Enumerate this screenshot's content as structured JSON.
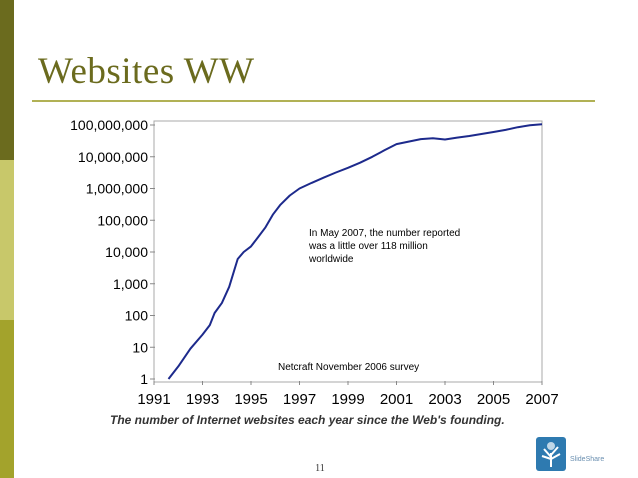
{
  "slide": {
    "title": "Websites WW",
    "page_number": "11",
    "logo_text": "SlideShare"
  },
  "colors": {
    "bar_dark": "#6b6b1e",
    "bar_light": "#c8c86a",
    "title": "#6b6b1e",
    "line": "#1d2a8c",
    "logo": "#2e7ab0"
  },
  "chart_data": {
    "type": "line",
    "y_scale": "log",
    "ylim": [
      1,
      100000000
    ],
    "xlim": [
      1991,
      2007
    ],
    "xticks": [
      "1991",
      "1993",
      "1995",
      "1997",
      "1999",
      "2001",
      "2003",
      "2005",
      "2007"
    ],
    "yticks": [
      {
        "value": 100000000,
        "label": "100,000,000"
      },
      {
        "value": 10000000,
        "label": "10,000,000"
      },
      {
        "value": 1000000,
        "label": "1,000,000"
      },
      {
        "value": 100000,
        "label": "100,000"
      },
      {
        "value": 10000,
        "label": "10,000"
      },
      {
        "value": 1000,
        "label": "1,000"
      },
      {
        "value": 100,
        "label": "100"
      },
      {
        "value": 10,
        "label": "10"
      },
      {
        "value": 1,
        "label": "1"
      }
    ],
    "series": [
      {
        "points": [
          [
            1991.6,
            1
          ],
          [
            1992.0,
            2.5
          ],
          [
            1992.5,
            9
          ],
          [
            1993.0,
            25
          ],
          [
            1993.3,
            50
          ],
          [
            1993.5,
            120
          ],
          [
            1993.8,
            250
          ],
          [
            1994.1,
            800
          ],
          [
            1994.3,
            2500
          ],
          [
            1994.45,
            6000
          ],
          [
            1994.7,
            10000
          ],
          [
            1995.0,
            15000
          ],
          [
            1995.3,
            30000
          ],
          [
            1995.6,
            60000
          ],
          [
            1995.9,
            150000
          ],
          [
            1996.2,
            300000
          ],
          [
            1996.6,
            600000
          ],
          [
            1997.0,
            1000000
          ],
          [
            1997.5,
            1500000
          ],
          [
            1998.0,
            2200000
          ],
          [
            1998.5,
            3200000
          ],
          [
            1999.0,
            4500000
          ],
          [
            1999.5,
            6500000
          ],
          [
            2000.0,
            10000000
          ],
          [
            2000.5,
            16000000
          ],
          [
            2001.0,
            25000000
          ],
          [
            2001.5,
            30000000
          ],
          [
            2002.0,
            36000000
          ],
          [
            2002.5,
            38000000
          ],
          [
            2003.0,
            35000000
          ],
          [
            2003.5,
            40000000
          ],
          [
            2004.0,
            45000000
          ],
          [
            2004.5,
            52000000
          ],
          [
            2005.0,
            60000000
          ],
          [
            2005.5,
            70000000
          ],
          [
            2006.0,
            85000000
          ],
          [
            2006.5,
            98000000
          ],
          [
            2007.0,
            105000000
          ]
        ]
      }
    ],
    "annotations": [
      {
        "text": "In May 2007, the number reported was a little over 118 million worldwide"
      },
      {
        "text": "Netcraft November 2006 survey"
      }
    ],
    "caption": "The number of Internet websites each year since the Web's founding."
  }
}
